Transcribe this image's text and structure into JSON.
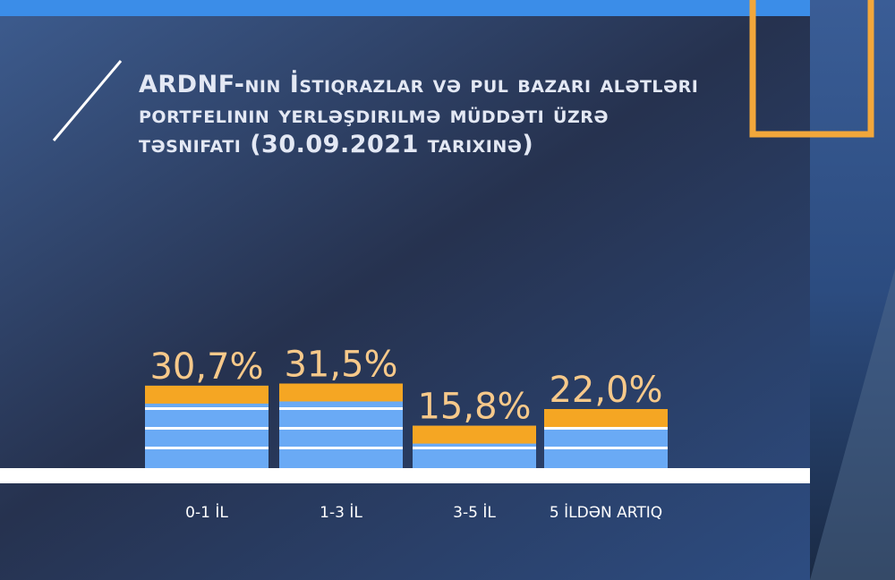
{
  "chart_data": {
    "type": "bar",
    "title": "ARDNF-nin İstiqrazlar və pul bazarı alətləri portfelinin yerləşdirilmə müddəti üzrə təsnifatı (30.09.2021 tarixinə)",
    "categories": [
      "0-1 İL",
      "1-3 İL",
      "3-5 İL",
      "5 İLDƏN ARTIQ"
    ],
    "values": [
      30.7,
      31.5,
      15.8,
      22.0
    ],
    "value_labels": [
      "30,7%",
      "31,5%",
      "15,8%",
      "22,0%"
    ],
    "color": "#6aaaf5"
  }
}
